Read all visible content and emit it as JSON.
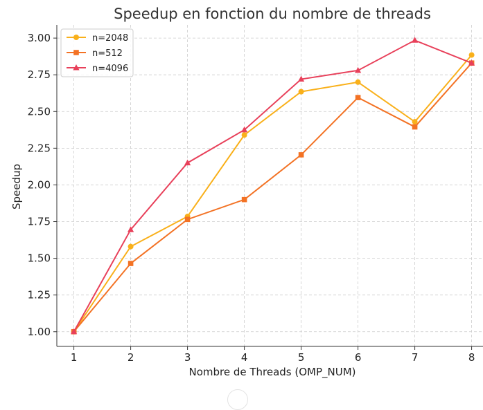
{
  "chart_data": {
    "type": "line",
    "title": "Speedup en fonction du nombre de threads",
    "xlabel": "Nombre de Threads (OMP_NUM)",
    "ylabel": "Speedup",
    "x": [
      1,
      2,
      3,
      4,
      5,
      6,
      7,
      8
    ],
    "xticks": [
      "1",
      "2",
      "3",
      "4",
      "5",
      "6",
      "7",
      "8"
    ],
    "yticks": [
      "1.00",
      "1.25",
      "1.50",
      "1.75",
      "2.00",
      "2.25",
      "2.50",
      "2.75",
      "3.00"
    ],
    "xlim": [
      0.7,
      8.2
    ],
    "ylim": [
      0.9,
      3.09
    ],
    "grid": true,
    "legend_position": "top-left",
    "series": [
      {
        "name": "n=2048",
        "color": "#f9b01a",
        "marker": "circle",
        "values": [
          1.0,
          1.58,
          1.785,
          2.34,
          2.635,
          2.7,
          2.43,
          2.885
        ]
      },
      {
        "name": "n=512",
        "color": "#f37224",
        "marker": "square",
        "values": [
          1.0,
          1.465,
          1.765,
          1.9,
          2.205,
          2.595,
          2.395,
          2.83
        ]
      },
      {
        "name": "n=4096",
        "color": "#e8405a",
        "marker": "triangle",
        "values": [
          1.0,
          1.695,
          2.15,
          2.375,
          2.72,
          2.78,
          2.985,
          2.83
        ]
      }
    ]
  }
}
